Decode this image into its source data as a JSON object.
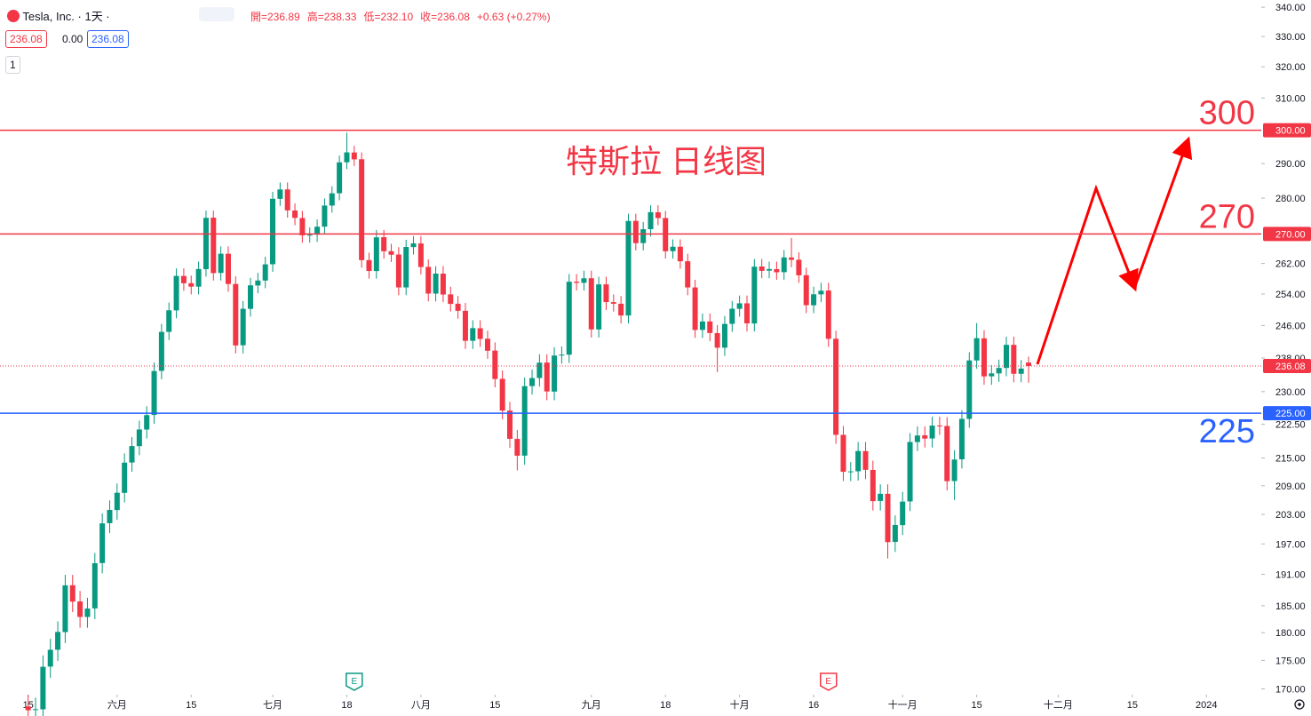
{
  "chart_data": {
    "type": "candlestick",
    "header": {
      "symbol": "Tesla, Inc. · 1天 ·",
      "legend": [
        "開=236.89",
        "高=238.33",
        "低=232.10",
        "收=236.08",
        "+0.63 (+0.27%)"
      ],
      "boxes": [
        "236.08",
        "0.00",
        "236.08"
      ],
      "collapse": "1"
    },
    "annotation": "特斯拉 日线图",
    "open": [
      167.0,
      166.4,
      166.5,
      173.9,
      176.9,
      180.1,
      188.9,
      185.8,
      182.9,
      184.5,
      193.2,
      201.2,
      203.9,
      207.5,
      214.0,
      217.6,
      221.3,
      224.6,
      234.9,
      244.4,
      249.8,
      258.7,
      256.8,
      255.9,
      260.5,
      274.5,
      259.5,
      264.6,
      256.6,
      241.1,
      250.2,
      256.2,
      257.5,
      261.8,
      279.8,
      282.5,
      276.5,
      274.4,
      269.6,
      269.8,
      272.0,
      277.9,
      281.4,
      290.4,
      293.3,
      291.3,
      262.9,
      260.0,
      269.1,
      265.3,
      264.4,
      255.7,
      266.4,
      267.4,
      261.1,
      254.1,
      259.3,
      253.9,
      251.5,
      249.7,
      242.2,
      245.3,
      242.7,
      239.8,
      233.0,
      225.6,
      219.2,
      215.5,
      231.3,
      233.2,
      236.9,
      230.0,
      238.6,
      238.8,
      257.2,
      256.9,
      258.1,
      245.0,
      256.5,
      251.9,
      251.5,
      248.5,
      273.6,
      267.5,
      271.3,
      276.0,
      274.4,
      265.3,
      266.5,
      262.6,
      255.7,
      244.9,
      247.0,
      244.1,
      240.5,
      246.4,
      250.2,
      251.6,
      246.5,
      261.2,
      260.1,
      260.5,
      259.7,
      263.6,
      263.0,
      258.9,
      251.1,
      253.9,
      254.9,
      242.7,
      220.1,
      212.0,
      212.1,
      216.5,
      212.4,
      205.8,
      207.3,
      197.4,
      200.8,
      205.7,
      218.5,
      220.0,
      219.3,
      222.2,
      222.1,
      210.0,
      214.7,
      223.7,
      237.4,
      242.8,
      233.6,
      234.3,
      235.6,
      241.2,
      234.2,
      236.89
    ],
    "high": [
      169.0,
      168.5,
      175.9,
      178.9,
      182.1,
      190.9,
      190.9,
      187.8,
      186.5,
      195.2,
      203.2,
      205.9,
      209.5,
      216.0,
      219.6,
      223.3,
      226.6,
      236.9,
      246.4,
      251.8,
      260.7,
      260.7,
      258.8,
      262.5,
      276.5,
      276.5,
      266.6,
      266.6,
      258.6,
      252.2,
      258.2,
      259.5,
      263.8,
      281.8,
      284.5,
      284.5,
      278.5,
      276.4,
      271.8,
      274.0,
      279.9,
      283.4,
      292.4,
      299.3,
      295.3,
      293.3,
      264.9,
      271.1,
      271.1,
      267.3,
      266.4,
      268.4,
      269.4,
      269.4,
      263.1,
      261.3,
      261.3,
      255.9,
      253.5,
      251.7,
      247.3,
      247.3,
      244.7,
      241.8,
      235.0,
      227.6,
      221.2,
      233.3,
      235.2,
      238.9,
      238.9,
      240.6,
      240.8,
      259.2,
      259.2,
      260.1,
      260.1,
      258.5,
      258.5,
      253.9,
      253.5,
      275.6,
      275.6,
      273.3,
      278.0,
      278.0,
      276.4,
      268.5,
      268.5,
      264.6,
      257.7,
      249.0,
      249.0,
      246.1,
      248.4,
      252.2,
      253.6,
      253.6,
      263.2,
      263.2,
      262.5,
      262.5,
      265.6,
      268.9,
      265.0,
      260.9,
      255.9,
      256.9,
      256.9,
      244.7,
      222.1,
      214.1,
      218.5,
      218.5,
      214.4,
      209.3,
      209.3,
      202.8,
      207.7,
      220.5,
      222.0,
      222.0,
      224.2,
      224.2,
      224.1,
      216.7,
      225.7,
      239.4,
      246.6,
      244.8,
      236.3,
      237.6,
      243.2,
      243.2,
      237.5,
      238.33
    ],
    "low": [
      164.4,
      164.4,
      164.5,
      171.9,
      174.9,
      178.1,
      183.8,
      180.9,
      180.9,
      182.5,
      191.2,
      199.2,
      201.9,
      205.5,
      212.0,
      215.6,
      219.3,
      222.6,
      232.9,
      242.4,
      247.8,
      254.8,
      253.9,
      253.9,
      258.5,
      257.5,
      257.5,
      254.6,
      239.1,
      239.1,
      248.2,
      254.2,
      255.5,
      259.8,
      277.8,
      274.5,
      272.4,
      267.6,
      267.6,
      267.8,
      270.0,
      275.9,
      279.4,
      288.4,
      289.3,
      260.9,
      258.0,
      258.0,
      263.3,
      262.4,
      253.7,
      253.7,
      264.4,
      259.1,
      252.1,
      252.1,
      251.9,
      249.5,
      247.7,
      240.2,
      240.2,
      240.7,
      237.8,
      231.0,
      223.6,
      217.2,
      212.3,
      213.5,
      229.3,
      231.2,
      228.0,
      228.0,
      236.6,
      236.8,
      254.9,
      254.9,
      243.0,
      243.0,
      249.9,
      249.5,
      246.5,
      246.5,
      265.5,
      265.5,
      269.3,
      272.4,
      263.3,
      263.3,
      260.6,
      253.7,
      242.9,
      242.9,
      242.1,
      234.6,
      238.5,
      244.4,
      248.2,
      244.5,
      244.5,
      258.1,
      258.1,
      257.7,
      257.7,
      261.0,
      256.9,
      249.1,
      249.1,
      251.9,
      240.7,
      218.1,
      210.0,
      210.0,
      210.1,
      210.4,
      203.8,
      203.8,
      194.1,
      195.4,
      198.8,
      203.7,
      216.5,
      217.3,
      217.3,
      220.1,
      208.0,
      206.0,
      212.7,
      221.7,
      235.4,
      231.6,
      231.6,
      232.3,
      233.6,
      232.2,
      232.2,
      232.1
    ],
    "close": [
      166.35,
      166.52,
      173.86,
      176.89,
      180.14,
      188.87,
      185.77,
      182.9,
      184.47,
      193.17,
      201.16,
      203.93,
      207.52,
      213.97,
      217.61,
      221.31,
      224.57,
      234.86,
      244.4,
      249.83,
      258.71,
      256.79,
      255.9,
      260.54,
      274.45,
      259.46,
      264.61,
      256.6,
      241.05,
      250.21,
      256.24,
      257.5,
      261.77,
      279.82,
      282.48,
      276.54,
      274.43,
      269.61,
      269.79,
      271.99,
      277.9,
      281.38,
      290.38,
      293.34,
      291.26,
      262.9,
      260.02,
      269.06,
      265.28,
      264.35,
      255.71,
      266.44,
      267.43,
      261.07,
      254.11,
      259.32,
      253.86,
      251.45,
      249.7,
      242.19,
      245.34,
      242.65,
      239.76,
      232.96,
      225.6,
      219.22,
      215.49,
      231.28,
      233.19,
      236.86,
      230.04,
      238.59,
      238.82,
      257.18,
      256.9,
      258.08,
      245.01,
      256.49,
      251.92,
      251.49,
      248.5,
      273.58,
      267.48,
      271.3,
      276.04,
      274.39,
      265.28,
      266.5,
      262.59,
      255.7,
      244.88,
      246.99,
      244.12,
      240.5,
      246.38,
      250.22,
      251.6,
      246.53,
      261.16,
      260.05,
      260.53,
      259.67,
      263.62,
      262.99,
      258.87,
      251.12,
      253.92,
      254.85,
      242.68,
      220.11,
      211.99,
      212.08,
      216.52,
      212.42,
      205.76,
      207.3,
      197.36,
      200.84,
      205.66,
      218.51,
      219.96,
      219.27,
      222.18,
      222.11,
      209.98,
      214.65,
      223.71,
      237.41,
      242.84,
      233.59,
      234.3,
      235.6,
      241.2,
      234.21,
      235.45,
      236.08
    ],
    "up_color": "#089981",
    "down_color": "#f23645",
    "xlim": [
      -3.8,
      166.4
    ],
    "xticks": [
      {
        "value": 0,
        "label": "15"
      },
      {
        "value": 12,
        "label": "六月"
      },
      {
        "value": 22,
        "label": "15"
      },
      {
        "value": 33,
        "label": "七月"
      },
      {
        "value": 43,
        "label": "18"
      },
      {
        "value": 53,
        "label": "八月"
      },
      {
        "value": 63,
        "label": "15"
      },
      {
        "value": 76,
        "label": "九月"
      },
      {
        "value": 86,
        "label": "18"
      },
      {
        "value": 96,
        "label": "十月"
      },
      {
        "value": 106,
        "label": "16"
      },
      {
        "value": 118,
        "label": "十一月"
      },
      {
        "value": 128,
        "label": "15"
      },
      {
        "value": 139,
        "label": "十二月"
      },
      {
        "value": 149,
        "label": "15"
      },
      {
        "value": 159,
        "label": "2024"
      }
    ],
    "ylim": [
      169,
      342.5
    ],
    "log_scale": true,
    "yticks": [
      {
        "value": 170,
        "label": "170.00"
      },
      {
        "value": 175,
        "label": "175.00"
      },
      {
        "value": 180,
        "label": "180.00"
      },
      {
        "value": 185,
        "label": "185.00"
      },
      {
        "value": 191,
        "label": "191.00"
      },
      {
        "value": 197,
        "label": "197.00"
      },
      {
        "value": 203,
        "label": "203.00"
      },
      {
        "value": 209,
        "label": "209.00"
      },
      {
        "value": 215,
        "label": "215.00"
      },
      {
        "value": 222.5,
        "label": "222.50"
      },
      {
        "value": 230,
        "label": "230.00"
      },
      {
        "value": 238,
        "label": "238.00"
      },
      {
        "value": 246,
        "label": "246.00"
      },
      {
        "value": 254,
        "label": "254.00"
      },
      {
        "value": 262,
        "label": "262.00"
      },
      {
        "value": 280,
        "label": "280.00"
      },
      {
        "value": 290,
        "label": "290.00"
      },
      {
        "value": 310,
        "label": "310.00"
      },
      {
        "value": 320,
        "label": "320.00"
      },
      {
        "value": 330,
        "label": "330.00"
      },
      {
        "value": 340,
        "label": "340.00"
      }
    ],
    "hlines": [
      {
        "value": 300,
        "label": "300",
        "axis_label": "300.00",
        "color": "#f23645"
      },
      {
        "value": 270,
        "label": "270",
        "axis_label": "270.00",
        "color": "#f23645"
      },
      {
        "value": 225,
        "label": "225",
        "axis_label": "225.00",
        "color": "#2962ff"
      }
    ],
    "last_price": {
      "value": 236.08,
      "label": "236.08",
      "color": "#f23645"
    },
    "events": [
      {
        "index": 44,
        "label": "E",
        "color": "#089981"
      },
      {
        "index": 108,
        "label": "E",
        "color": "#f23645"
      }
    ]
  }
}
